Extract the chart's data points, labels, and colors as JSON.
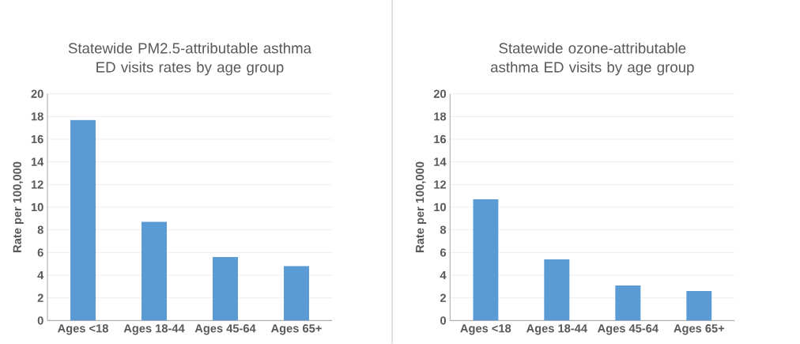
{
  "chart_data": [
    {
      "type": "bar",
      "title": "Statewide PM2.5-attributable asthma ED visits rates by age group",
      "ylabel": "Rate per 100,000",
      "categories": [
        "Ages <18",
        "Ages 18-44",
        "Ages 45-64",
        "Ages 65+"
      ],
      "values": [
        17.7,
        8.7,
        5.6,
        4.8
      ],
      "color": "#5b9bd5",
      "ylim": [
        0,
        20
      ],
      "yticks": [
        0,
        2,
        4,
        6,
        8,
        10,
        12,
        14,
        16,
        18,
        20
      ],
      "grid": "y"
    },
    {
      "type": "bar",
      "title": "Statewide ozone-attributable asthma ED visits by age group",
      "ylabel": "Rate per 100,000",
      "categories": [
        "Ages <18",
        "Ages 18-44",
        "Ages 45-64",
        "Ages 65+"
      ],
      "values": [
        10.7,
        5.4,
        3.1,
        2.6
      ],
      "color": "#5b9bd5",
      "ylim": [
        0,
        20
      ],
      "yticks": [
        0,
        2,
        4,
        6,
        8,
        10,
        12,
        14,
        16,
        18,
        20
      ],
      "grid": "y"
    }
  ]
}
